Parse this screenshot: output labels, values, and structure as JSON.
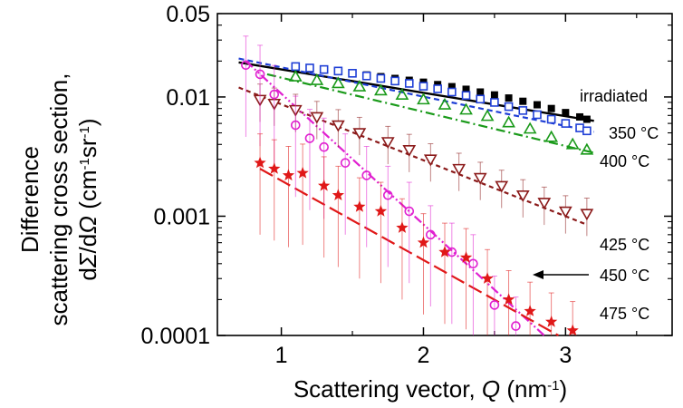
{
  "chart_data": {
    "type": "scatter",
    "title": "",
    "xlabel": {
      "prefix": "Scattering vector, ",
      "var": "Q",
      "unit_open": " (nm",
      "unit_exp": "-1",
      "unit_close": ")"
    },
    "ylabel": {
      "line1": "Difference",
      "line2": "scattering cross section,",
      "line3_prefix": "d",
      "line3_sigma": "Σ",
      "line3_mid": "/d",
      "line3_omega": "Ω",
      "line3_unit_open": "  (cm",
      "line3_exp1": "-1",
      "line3_unit_mid": "sr",
      "line3_exp2": "-1",
      "line3_unit_close": ")"
    },
    "xlim": [
      0.55,
      3.75
    ],
    "ylim": [
      0.0001,
      0.05
    ],
    "yscale": "log",
    "x_ticks": [
      1,
      2,
      3
    ],
    "x_tick_labels": [
      "1",
      "2",
      "3"
    ],
    "y_ticks": [
      0.0001,
      0.001,
      0.01,
      0.05
    ],
    "y_tick_labels": [
      "0.0001",
      "0.001",
      "0.01",
      "0.05"
    ],
    "series": [
      {
        "name": "irradiated",
        "color": "#000000",
        "marker": "filled-square",
        "line": "solid",
        "x": [
          1.1,
          1.2,
          1.3,
          1.4,
          1.5,
          1.6,
          1.7,
          1.8,
          1.9,
          2.0,
          2.1,
          2.2,
          2.3,
          2.4,
          2.5,
          2.6,
          2.7,
          2.8,
          2.9,
          3.0,
          3.1,
          3.15
        ],
        "y": [
          0.0175,
          0.0172,
          0.0168,
          0.0163,
          0.0158,
          0.0153,
          0.0148,
          0.0143,
          0.0138,
          0.0133,
          0.0127,
          0.0122,
          0.0116,
          0.011,
          0.0104,
          0.0098,
          0.0092,
          0.0086,
          0.008,
          0.0074,
          0.0068,
          0.0065
        ],
        "fit_x": [
          0.7,
          3.2
        ],
        "fit_y": [
          0.0195,
          0.0063
        ]
      },
      {
        "name": "350 °C",
        "color": "#1f3fd6",
        "marker": "open-square",
        "line": "dashed",
        "x": [
          1.1,
          1.2,
          1.3,
          1.4,
          1.5,
          1.6,
          1.7,
          1.8,
          1.9,
          2.0,
          2.1,
          2.2,
          2.3,
          2.4,
          2.5,
          2.6,
          2.7,
          2.8,
          2.9,
          3.0,
          3.1,
          3.15
        ],
        "y": [
          0.018,
          0.0175,
          0.017,
          0.0165,
          0.0158,
          0.015,
          0.0143,
          0.0136,
          0.013,
          0.0123,
          0.0117,
          0.011,
          0.0103,
          0.0096,
          0.009,
          0.0083,
          0.0077,
          0.0071,
          0.0065,
          0.006,
          0.0055,
          0.0052
        ],
        "fit_x": [
          0.7,
          3.2
        ],
        "fit_y": [
          0.021,
          0.0051
        ]
      },
      {
        "name": "400 °C",
        "color": "#1a9a1a",
        "marker": "open-triangle",
        "line": "dashdot",
        "x": [
          1.1,
          1.25,
          1.4,
          1.55,
          1.7,
          1.85,
          2.0,
          2.15,
          2.3,
          2.45,
          2.6,
          2.75,
          2.9,
          3.05,
          3.15
        ],
        "y": [
          0.0148,
          0.0138,
          0.013,
          0.0122,
          0.0113,
          0.0104,
          0.0095,
          0.0086,
          0.0078,
          0.0069,
          0.0061,
          0.0054,
          0.0046,
          0.004,
          0.0036
        ],
        "fit_x": [
          0.9,
          3.2
        ],
        "fit_y": [
          0.0155,
          0.0034
        ]
      },
      {
        "name": "425 °C",
        "color": "#8b1a1a",
        "marker": "open-down-triangle",
        "line": "short-dash",
        "x": [
          0.85,
          0.95,
          1.1,
          1.25,
          1.4,
          1.55,
          1.75,
          1.9,
          2.05,
          2.25,
          2.4,
          2.55,
          2.7,
          2.85,
          3.0,
          3.15
        ],
        "y": [
          0.0095,
          0.0088,
          0.0078,
          0.0068,
          0.0058,
          0.005,
          0.0042,
          0.0036,
          0.003,
          0.0025,
          0.0021,
          0.0018,
          0.0015,
          0.0013,
          0.0011,
          0.00105
        ],
        "fit_x": [
          0.7,
          3.15
        ],
        "fit_y": [
          0.012,
          0.00085
        ]
      },
      {
        "name": "450 °C",
        "color": "#e020d0",
        "marker": "open-circle",
        "line": "dashdotdot",
        "x": [
          0.75,
          0.85,
          0.95,
          1.1,
          1.2,
          1.3,
          1.45,
          1.6,
          1.75,
          1.9,
          2.05,
          2.2,
          2.35,
          2.5,
          2.65
        ],
        "y": [
          0.0185,
          0.0155,
          0.0105,
          0.0058,
          0.0045,
          0.0038,
          0.0028,
          0.0022,
          0.0015,
          0.0011,
          0.0007,
          0.0005,
          0.0004,
          0.00018,
          0.00012
        ],
        "fit_x": [
          0.75,
          2.85
        ],
        "fit_y": [
          0.02,
          0.0001
        ]
      },
      {
        "name": "475 °C",
        "color": "#e01818",
        "marker": "filled-star",
        "line": "long-dash",
        "x": [
          0.85,
          0.95,
          1.05,
          1.15,
          1.3,
          1.4,
          1.55,
          1.7,
          1.85,
          2.0,
          2.15,
          2.3,
          2.45,
          2.6,
          2.75,
          2.9,
          3.05
        ],
        "y": [
          0.0028,
          0.0025,
          0.0022,
          0.0023,
          0.0018,
          0.0015,
          0.0012,
          0.0011,
          0.0008,
          0.0006,
          0.0005,
          0.00045,
          0.0003,
          0.0002,
          0.00016,
          0.00013,
          0.00011
        ],
        "fit_x": [
          0.85,
          2.95
        ],
        "fit_y": [
          0.0025,
          0.0001
        ]
      }
    ],
    "annotation": {
      "text": "450 °C",
      "arrow": "points-left-to-450-curve"
    }
  }
}
